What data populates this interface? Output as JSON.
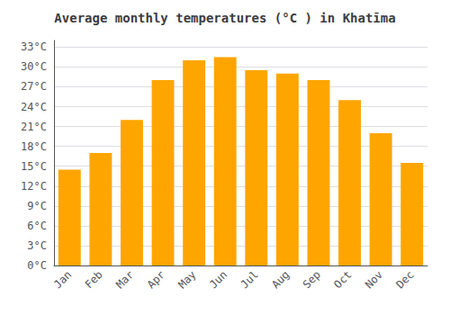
{
  "chart_data": {
    "type": "bar",
    "title": "Average monthly temperatures (°C ) in Khatīma",
    "categories": [
      "Jan",
      "Feb",
      "Mar",
      "Apr",
      "May",
      "Jun",
      "Jul",
      "Aug",
      "Sep",
      "Oct",
      "Nov",
      "Dec"
    ],
    "values": [
      14.5,
      17.0,
      22.0,
      28.0,
      31.0,
      31.5,
      29.5,
      29.0,
      28.0,
      25.0,
      20.0,
      15.5
    ],
    "color": "#FFA500",
    "ylim": [
      0,
      34
    ],
    "yticks": [
      {
        "value": 0,
        "label": "0°C"
      },
      {
        "value": 3,
        "label": "3°C"
      },
      {
        "value": 6,
        "label": "6°C"
      },
      {
        "value": 9,
        "label": "9°C"
      },
      {
        "value": 12,
        "label": "12°C"
      },
      {
        "value": 15,
        "label": "15°C"
      },
      {
        "value": 18,
        "label": "18°C"
      },
      {
        "value": 21,
        "label": "21°C"
      },
      {
        "value": 24,
        "label": "24°C"
      },
      {
        "value": 27,
        "label": "27°C"
      },
      {
        "value": 30,
        "label": "30°C"
      },
      {
        "value": 33,
        "label": "33°C"
      }
    ],
    "grid": true
  }
}
